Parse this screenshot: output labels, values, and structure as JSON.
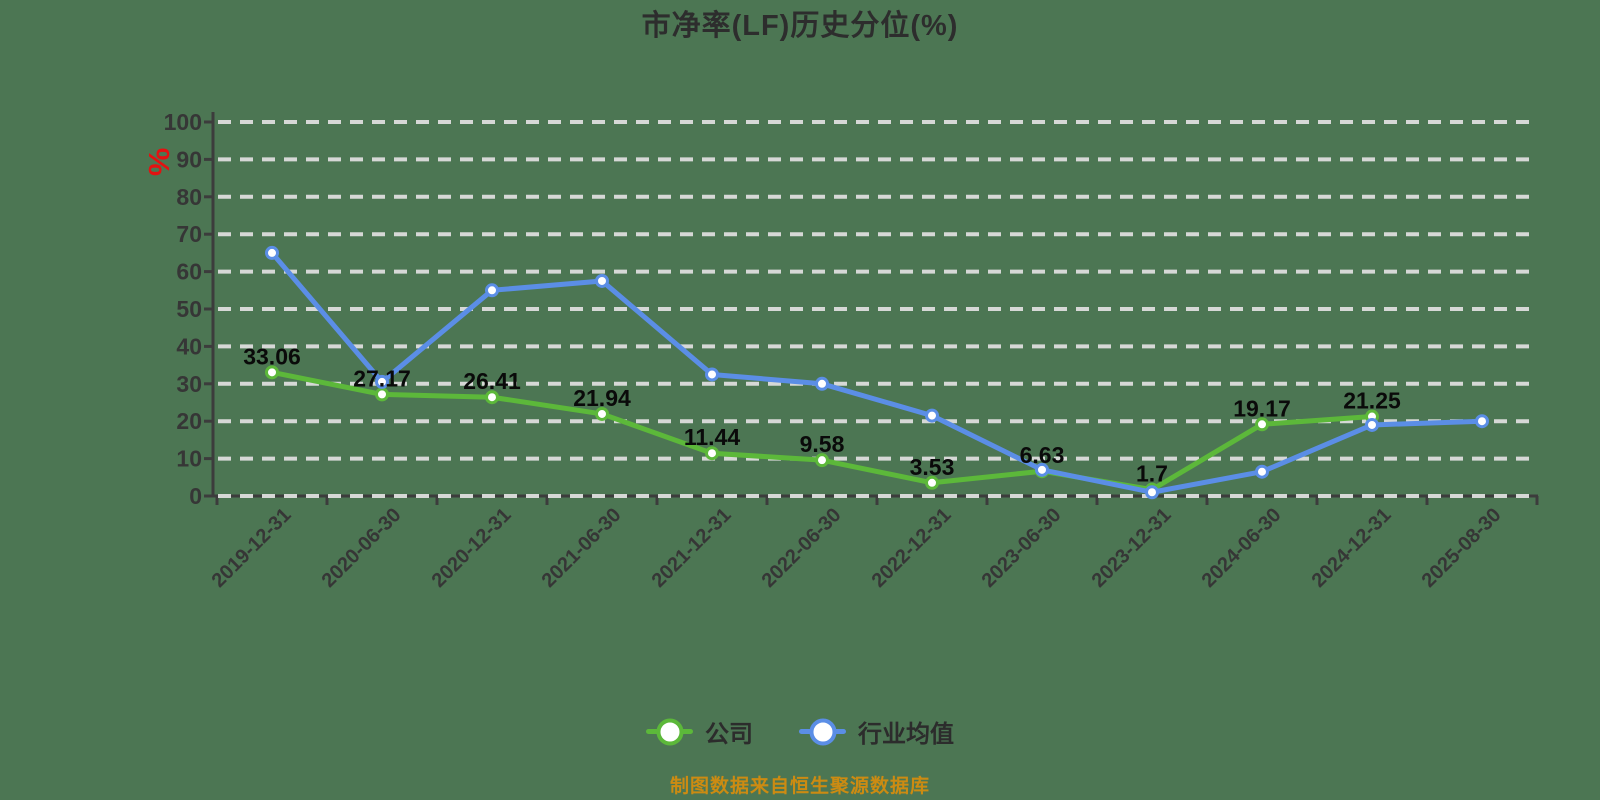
{
  "page": {
    "footer": "制图数据来自恒生聚源数据库",
    "y_axis_red_mark": "%"
  },
  "chart_data": {
    "type": "line",
    "title": "市净率(LF)历史分位(%)",
    "categories": [
      "2019-12-31",
      "2020-06-30",
      "2020-12-31",
      "2021-06-30",
      "2021-12-31",
      "2022-06-30",
      "2022-12-31",
      "2023-06-30",
      "2023-12-31",
      "2024-06-30",
      "2024-12-31",
      "2025-08-30"
    ],
    "series": [
      {
        "name": "公司",
        "key": "company",
        "color": "#5cb83a",
        "values": [
          33.06,
          27.17,
          26.41,
          21.94,
          11.44,
          9.58,
          3.53,
          6.63,
          1.7,
          19.17,
          21.25,
          null
        ],
        "labels": [
          "33.06",
          "27.17",
          "26.41",
          "21.94",
          "11.44",
          "9.58",
          "3.53",
          "6.63",
          "1.7",
          "19.17",
          "21.25",
          ""
        ]
      },
      {
        "name": "行业均值",
        "key": "industry",
        "color": "#5b8ee6",
        "values": [
          65,
          30.5,
          55,
          57.5,
          32.5,
          30,
          21.5,
          7,
          1,
          6.5,
          19,
          20
        ],
        "labels": []
      }
    ],
    "ylim": [
      0,
      100
    ],
    "ytick_step": 10,
    "y_tick_labels": [
      "0",
      "10",
      "20",
      "30",
      "40",
      "50",
      "60",
      "70",
      "80",
      "90",
      "100"
    ],
    "grid": "horizontal-dashed",
    "legend_position": "bottom",
    "x_label_rotation": -45,
    "marker": "white-filled-circle"
  },
  "style": {
    "background": "#4c7653",
    "grid_color": "#d6d8d6",
    "axis_color": "#3c3c3c",
    "tick_label_color": "#363636",
    "data_label_color": "#0a0a0a",
    "title_color": "#2d2d2d",
    "footer_color": "#cc8b12",
    "red_mark_color": "#e31111"
  }
}
